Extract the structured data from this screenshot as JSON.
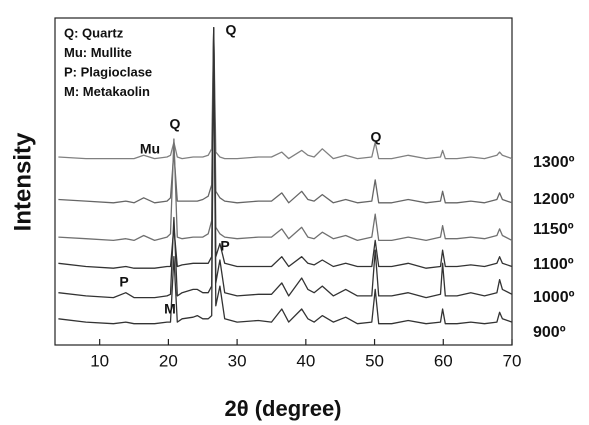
{
  "chart_data": {
    "type": "line",
    "x_label": "2θ (degree)",
    "y_label": "Intensity",
    "legend_text": [
      "Q: Quartz",
      "Mu: Mullite",
      "P: Plagioclase",
      "M: Metakaolin"
    ],
    "annotations": [
      "Q",
      "Mu",
      "Q",
      "Q",
      "P",
      "P",
      "M"
    ],
    "x": [
      4,
      8,
      12,
      13.8,
      15,
      16.4,
      18,
      19.8,
      20.3,
      20.8,
      21.3,
      22,
      23.6,
      24.2,
      25,
      25.8,
      26.3,
      26.6,
      26.9,
      27.5,
      28.2,
      30,
      33.1,
      35,
      36.5,
      37.5,
      39.4,
      40.3,
      41.2,
      42.4,
      44,
      45.8,
      47.5,
      49.6,
      50.1,
      50.6,
      52.5,
      54.9,
      57.5,
      59.6,
      59.9,
      60.3,
      62,
      64,
      66,
      67.8,
      68.2,
      68.6,
      70
    ],
    "series": [
      {
        "name": "1300º",
        "color": "#808080",
        "values": [
          57.5,
          57,
          57,
          57,
          57,
          58,
          57,
          57.5,
          58,
          62,
          57.5,
          57,
          57.5,
          57.5,
          57.5,
          58,
          60,
          97,
          59,
          57.5,
          57,
          57,
          57.5,
          57.5,
          59,
          57,
          59.5,
          58,
          57.5,
          60,
          57,
          58,
          57,
          57.5,
          62,
          57,
          57,
          58,
          57,
          57.5,
          59.5,
          57,
          57,
          57.5,
          57,
          58,
          59,
          58,
          57
        ]
      },
      {
        "name": "1200º",
        "color": "#666666",
        "values": [
          44.5,
          44,
          43.5,
          44,
          43.5,
          45,
          43.5,
          44,
          45,
          59,
          44,
          44,
          44,
          44,
          44.5,
          45.5,
          49,
          97,
          47,
          45,
          44,
          43.5,
          44,
          44,
          46.5,
          43.5,
          47,
          44.5,
          44,
          46,
          43.5,
          44.5,
          43.5,
          44,
          50.5,
          43.5,
          43.5,
          44.5,
          43.5,
          44,
          47,
          43.5,
          43.5,
          44,
          43.5,
          44.5,
          46.5,
          44.5,
          43.5
        ]
      },
      {
        "name": "1150º",
        "color": "#707070",
        "values": [
          33,
          32.5,
          32,
          32.5,
          32,
          33.5,
          32,
          33,
          34,
          63,
          33,
          32.5,
          33,
          33,
          33,
          34,
          38,
          97,
          36,
          34,
          33,
          32.5,
          33,
          33,
          35.5,
          32.5,
          36,
          33,
          32.5,
          34.5,
          32.5,
          33.5,
          32,
          33,
          40,
          32,
          32,
          33,
          32,
          33,
          36.5,
          32.5,
          32.5,
          33,
          32.5,
          33.5,
          35.5,
          33.5,
          32
        ]
      },
      {
        "name": "1100º",
        "color": "#333333",
        "values": [
          25,
          24,
          23.5,
          24,
          23.5,
          23.5,
          23.5,
          24,
          24,
          36,
          24,
          24.5,
          25,
          25,
          25,
          25,
          27,
          97,
          27,
          31,
          25,
          24,
          24,
          24,
          27,
          24,
          27,
          25,
          24.5,
          26,
          24,
          25,
          24,
          24,
          32,
          24,
          24,
          25,
          23.5,
          24,
          29,
          24,
          24,
          24.5,
          24,
          25,
          27,
          25,
          24
        ]
      },
      {
        "name": "1000º",
        "color": "#333333",
        "values": [
          16,
          15,
          14.5,
          16,
          14.5,
          14.5,
          14.5,
          15,
          15.5,
          39,
          15,
          16,
          17,
          17,
          16,
          16,
          18,
          97,
          19,
          26,
          16,
          15,
          15.5,
          15.5,
          19,
          15,
          20.5,
          17,
          16,
          18,
          15,
          17,
          15,
          15,
          29,
          15,
          15,
          16,
          14.5,
          15.5,
          25,
          15,
          15,
          16,
          15,
          16,
          20,
          17,
          15.5
        ]
      },
      {
        "name": "900º",
        "color": "#333333",
        "values": [
          8,
          7,
          6.5,
          7,
          6.5,
          6.5,
          6.5,
          7,
          7,
          27,
          7,
          8,
          8.5,
          9,
          8,
          8,
          9,
          96,
          12,
          18,
          8,
          7,
          7.5,
          7,
          11,
          7,
          11,
          8,
          7,
          9,
          7,
          8.5,
          6.5,
          7,
          17,
          6.5,
          6.5,
          7.5,
          6.5,
          7,
          11,
          6.5,
          6.5,
          7,
          6.5,
          7,
          10,
          8,
          7
        ]
      }
    ],
    "xlim": [
      3.5,
      70
    ],
    "ylim": [
      0,
      100
    ],
    "xticks": [
      10,
      20,
      30,
      40,
      50,
      60,
      70
    ]
  }
}
